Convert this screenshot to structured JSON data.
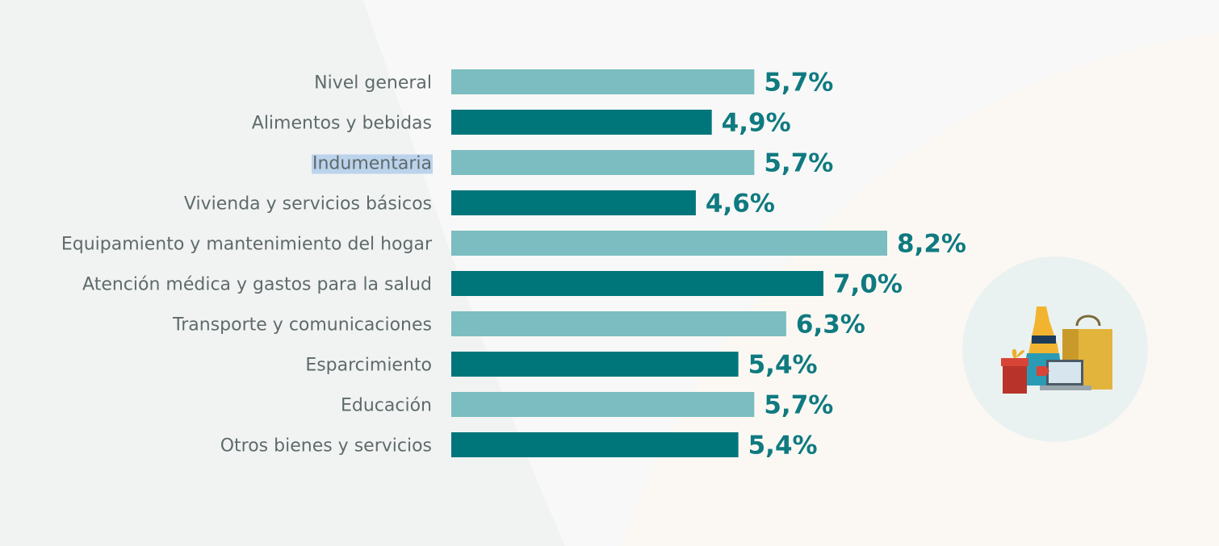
{
  "chart_data": {
    "type": "bar",
    "orientation": "horizontal",
    "categories": [
      "Nivel general",
      "Alimentos y bebidas",
      "Indumentaria",
      "Vivienda y servicios básicos",
      "Equipamiento y mantenimiento del hogar",
      "Atención médica y gastos para la salud",
      "Transporte y comunicaciones",
      "Esparcimiento",
      "Educación",
      "Otros bienes y servicios"
    ],
    "values": [
      5.7,
      4.9,
      5.7,
      4.6,
      8.2,
      7.0,
      6.3,
      5.4,
      5.7,
      5.4
    ],
    "value_labels": [
      "5,7%",
      "4,9%",
      "5,7%",
      "4,6%",
      "8,2%",
      "7,0%",
      "6,3%",
      "5,4%",
      "5,7%",
      "5,4%"
    ],
    "xlim": [
      0,
      8.2
    ],
    "colors": [
      "#7bbdc0",
      "#00767b"
    ],
    "color_pattern": "alternating",
    "highlighted_category": "Indumentaria",
    "highlight_color": "#bcd3ec",
    "title": "",
    "xlabel": "",
    "ylabel": "",
    "grid": false,
    "legend": "none"
  },
  "decoration": {
    "icon": "shopping-bags-dress-laptop-gift-icon"
  }
}
